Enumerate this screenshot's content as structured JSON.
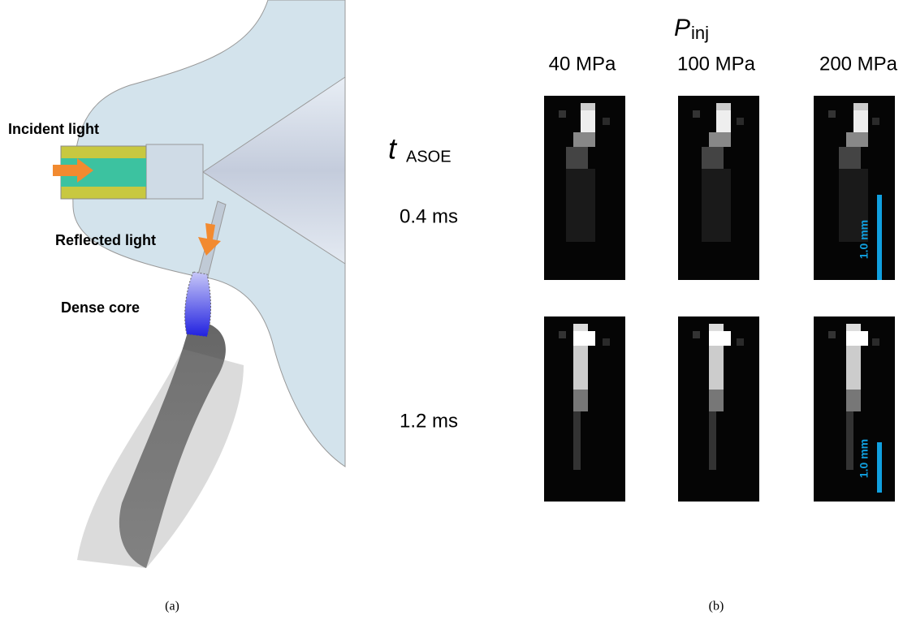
{
  "left_panel": {
    "labels": {
      "incident": "Incident light",
      "reflected": "Reflected light",
      "dense_core": "Dense core"
    },
    "caption": "(a)"
  },
  "right_panel": {
    "pressure_symbol": "P",
    "pressure_subscript": "inj",
    "pressures": [
      "40 MPa",
      "100 MPa",
      "200 MPa"
    ],
    "time_symbol": "t",
    "time_subscript": "ASOE",
    "times": [
      "0.4 ms",
      "1.2 ms"
    ],
    "scale_bars": [
      "1.0 mm",
      "1.0 mm"
    ],
    "caption": "(b)"
  }
}
